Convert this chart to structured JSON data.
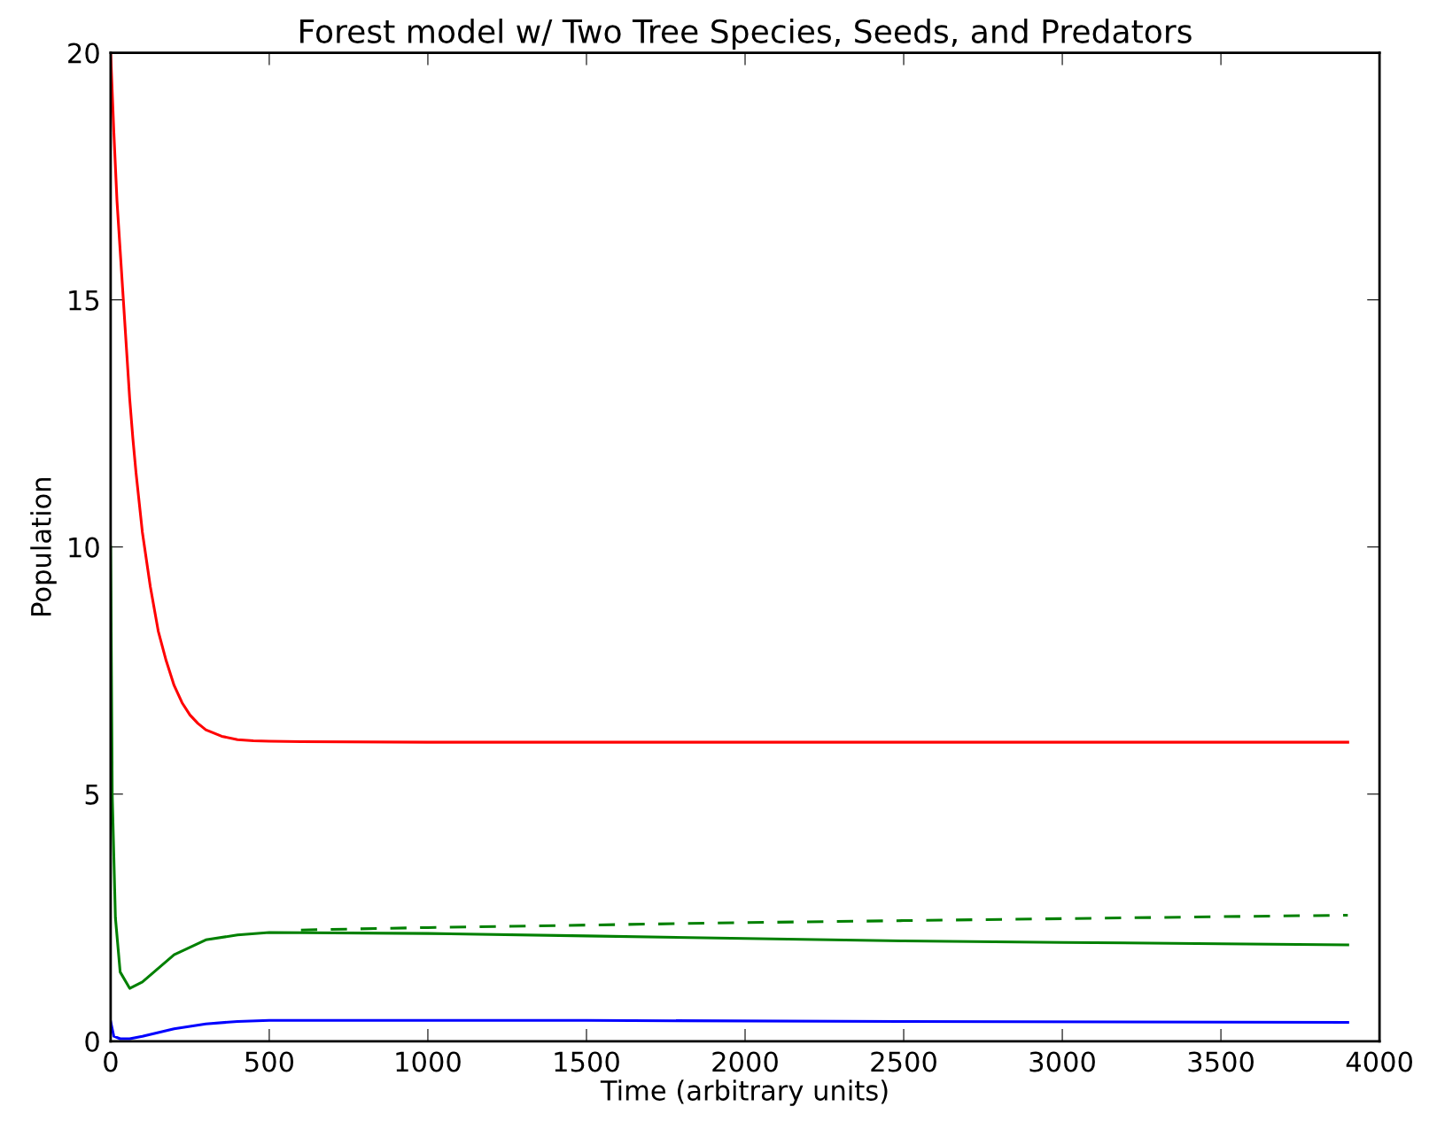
{
  "chart_data": {
    "type": "line",
    "title": "Forest model w/ Two Tree Species, Seeds, and Predators",
    "xlabel": "Time (arbitrary units)",
    "ylabel": "Population",
    "xlim": [
      0,
      4000
    ],
    "ylim": [
      0,
      20
    ],
    "xticks": [
      0,
      500,
      1000,
      1500,
      2000,
      2500,
      3000,
      3500,
      4000
    ],
    "yticks": [
      0,
      5,
      10,
      15,
      20
    ],
    "grid": false,
    "series": [
      {
        "color": "#ff0000",
        "line_style": "solid",
        "x": [
          0,
          10,
          20,
          30,
          40,
          50,
          60,
          70,
          80,
          90,
          100,
          125,
          150,
          175,
          200,
          225,
          250,
          275,
          300,
          350,
          400,
          450,
          500,
          600,
          1000,
          3900
        ],
        "values": [
          20,
          18.4,
          17,
          16,
          15,
          14,
          13,
          12.2,
          11.5,
          10.9,
          10.3,
          9.2,
          8.3,
          7.7,
          7.2,
          6.85,
          6.6,
          6.43,
          6.3,
          6.17,
          6.1,
          6.08,
          6.07,
          6.06,
          6.05,
          6.05
        ]
      },
      {
        "color": "#008000",
        "line_style": "dashed",
        "x": [
          600,
          1000,
          1500,
          2000,
          2500,
          3000,
          3500,
          3900
        ],
        "values": [
          2.25,
          2.3,
          2.35,
          2.4,
          2.44,
          2.48,
          2.52,
          2.55
        ]
      },
      {
        "color": "#008000",
        "line_style": "solid",
        "x": [
          0,
          5,
          15,
          30,
          60,
          100,
          200,
          300,
          400,
          500,
          1000,
          1500,
          2000,
          2500,
          3000,
          3500,
          3900
        ],
        "values": [
          10,
          5,
          2.5,
          1.4,
          1.07,
          1.2,
          1.75,
          2.05,
          2.15,
          2.2,
          2.18,
          2.13,
          2.08,
          2.03,
          2.0,
          1.97,
          1.95
        ]
      },
      {
        "color": "#0000ff",
        "line_style": "solid",
        "x": [
          0,
          10,
          30,
          60,
          100,
          200,
          300,
          400,
          500,
          1500,
          2500,
          3900
        ],
        "values": [
          0.4,
          0.1,
          0.05,
          0.05,
          0.1,
          0.25,
          0.35,
          0.4,
          0.42,
          0.42,
          0.4,
          0.38
        ]
      }
    ]
  }
}
